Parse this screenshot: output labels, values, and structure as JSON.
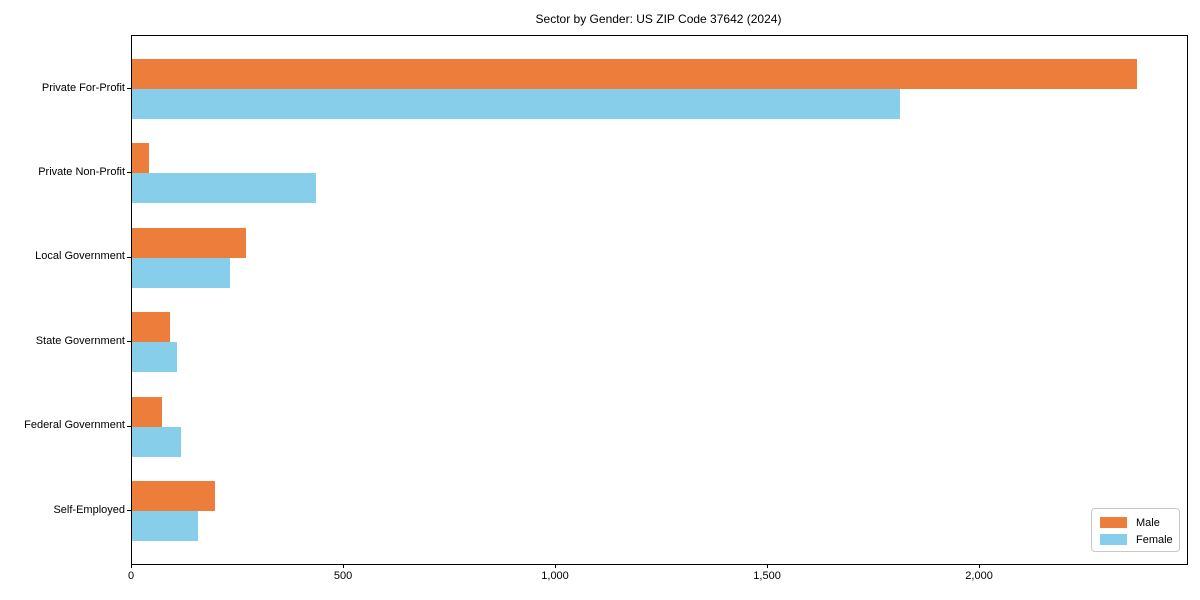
{
  "chart_data": {
    "type": "bar",
    "orientation": "horizontal",
    "title": "Sector by Gender: US ZIP Code 37642 (2024)",
    "categories": [
      "Private For-Profit",
      "Private Non-Profit",
      "Local Government",
      "State Government",
      "Federal Government",
      "Self-Employed"
    ],
    "series": [
      {
        "name": "Male",
        "color": "#ec7d3b",
        "values": [
          2370,
          40,
          270,
          90,
          70,
          195
        ]
      },
      {
        "name": "Female",
        "color": "#87ceeb",
        "values": [
          1810,
          435,
          230,
          105,
          115,
          155
        ]
      }
    ],
    "xlabel": "",
    "ylabel": "",
    "xlim": [
      0,
      2488
    ],
    "xticks": [
      {
        "value": 0,
        "label": "0"
      },
      {
        "value": 500,
        "label": "500"
      },
      {
        "value": 1000,
        "label": "1,000"
      },
      {
        "value": 1500,
        "label": "1,500"
      },
      {
        "value": 2000,
        "label": "2,000"
      }
    ],
    "grid": false,
    "legend": {
      "position": "lower right"
    }
  }
}
